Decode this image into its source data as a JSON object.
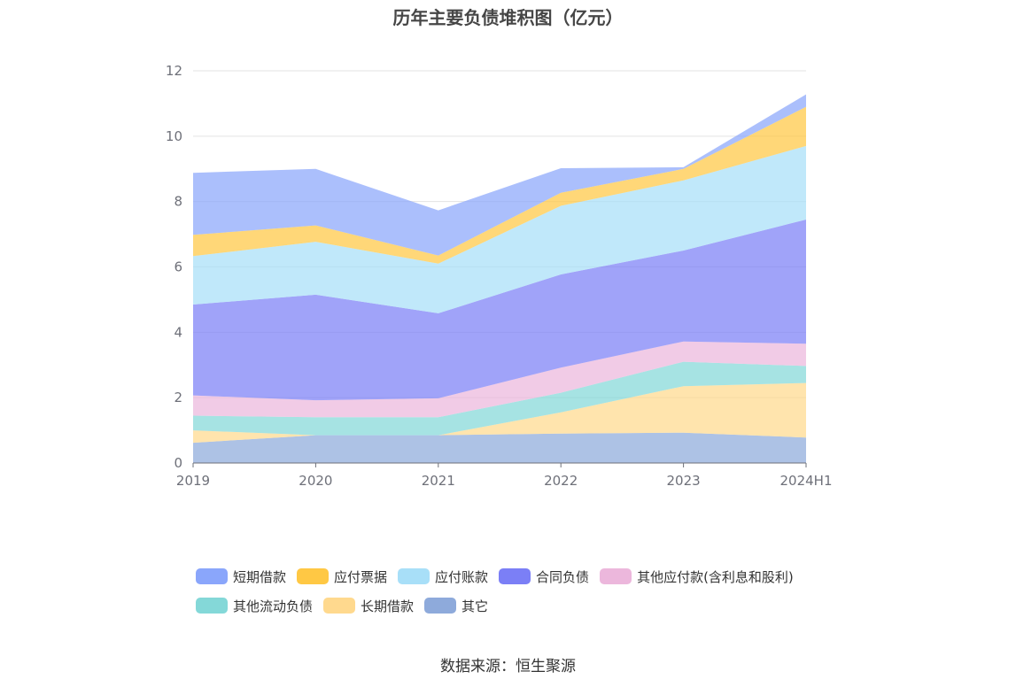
{
  "chart_data": {
    "type": "area",
    "title": "历年主要负债堆积图（亿元）",
    "x": [
      "2019",
      "2020",
      "2021",
      "2022",
      "2023",
      "2024H1"
    ],
    "ylim": [
      0,
      12
    ],
    "yticks": [
      0,
      2,
      4,
      6,
      8,
      10,
      12
    ],
    "grid": true,
    "stacked": true,
    "legend_position": "bottom",
    "series": [
      {
        "name": "其它",
        "color": "#8eaadb",
        "values": [
          0.62,
          0.85,
          0.85,
          0.9,
          0.93,
          0.78
        ]
      },
      {
        "name": "长期借款",
        "color": "#ffd98e",
        "values": [
          0.38,
          0.0,
          0.0,
          0.65,
          1.42,
          1.67
        ]
      },
      {
        "name": "其他流动负债",
        "color": "#84d8d8",
        "values": [
          0.45,
          0.55,
          0.55,
          0.6,
          0.75,
          0.52
        ]
      },
      {
        "name": "其他应付款(含利息和股利)",
        "color": "#ecb7dc",
        "values": [
          0.62,
          0.52,
          0.58,
          0.77,
          0.62,
          0.68
        ]
      },
      {
        "name": "合同负债",
        "color": "#7b7ff6",
        "values": [
          2.78,
          3.23,
          2.6,
          2.85,
          2.78,
          3.8
        ]
      },
      {
        "name": "应付账款",
        "color": "#a8dff8",
        "values": [
          1.48,
          1.62,
          1.52,
          2.1,
          2.15,
          2.25
        ]
      },
      {
        "name": "应付票据",
        "color": "#ffc844",
        "values": [
          0.65,
          0.5,
          0.25,
          0.4,
          0.35,
          1.2
        ]
      },
      {
        "name": "短期借款",
        "color": "#8aa6fb",
        "values": [
          1.9,
          1.73,
          1.38,
          0.75,
          0.05,
          0.38
        ]
      }
    ]
  },
  "legend_order": [
    "短期借款",
    "应付票据",
    "应付账款",
    "合同负债",
    "其他应付款(含利息和股利)",
    "其他流动负债",
    "长期借款",
    "其它"
  ],
  "source": "数据来源：恒生聚源"
}
